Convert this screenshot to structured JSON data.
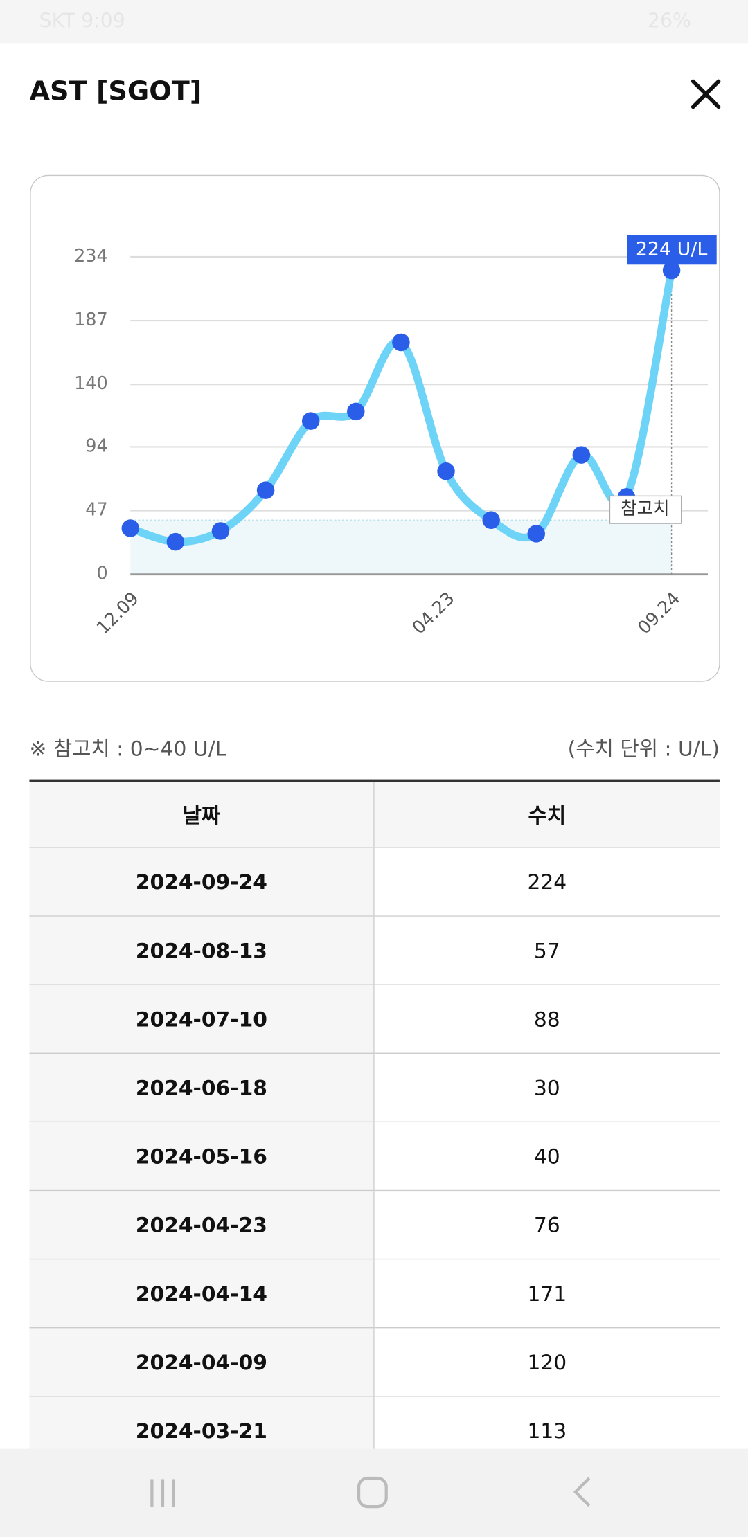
{
  "status_bar": {
    "left": "SKT 9:09",
    "right": "26%"
  },
  "header": {
    "title": "AST [SGOT]"
  },
  "chart_data": {
    "type": "line",
    "categories": [
      "12.09",
      null,
      null,
      null,
      null,
      null,
      null,
      "04.23",
      null,
      null,
      null,
      null,
      "09.24"
    ],
    "series": [
      {
        "name": "AST [SGOT]",
        "color": "#6dd3f7",
        "marker_color": "#2a5de8",
        "values": [
          34,
          24,
          32,
          62,
          113,
          120,
          171,
          76,
          40,
          30,
          88,
          57,
          224
        ]
      }
    ],
    "ylim": [
      0,
      234
    ],
    "yticks": [
      0,
      47,
      94,
      140,
      187,
      234
    ],
    "grid": true,
    "reference": {
      "label": "참고치",
      "range": [
        0,
        40
      ],
      "color": "#eef8fb"
    },
    "annotations": [
      "224 U/L"
    ]
  },
  "notes": {
    "reference": "※ 참고치 : 0~40 U/L",
    "unit": "(수치 단위 : U/L)"
  },
  "table": {
    "header": [
      "날짜",
      "수치"
    ],
    "rows": [
      [
        "2024-09-24",
        224
      ],
      [
        "2024-08-13",
        57
      ],
      [
        "2024-07-10",
        88
      ],
      [
        "2024-06-18",
        30
      ],
      [
        "2024-05-16",
        40
      ],
      [
        "2024-04-23",
        76
      ],
      [
        "2024-04-14",
        171
      ],
      [
        "2024-04-09",
        120
      ],
      [
        "2024-03-21",
        113
      ]
    ]
  }
}
